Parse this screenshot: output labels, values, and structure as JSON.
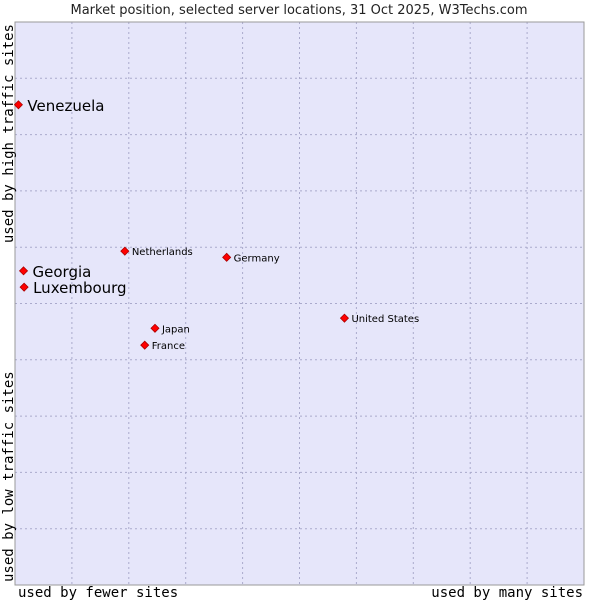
{
  "chart_data": {
    "type": "scatter",
    "title": "Market position, selected server locations, 31 Oct 2025, W3Techs.com",
    "xlabel_left": "used by fewer sites",
    "xlabel_right": "used by many sites",
    "ylabel_bottom": "used by low traffic sites",
    "ylabel_top": "used by high traffic sites",
    "xlim": [
      0,
      100
    ],
    "ylim": [
      0,
      100
    ],
    "grid": true,
    "colors": {
      "plot_background": "#e6e6fa",
      "grid": "#aaaacc",
      "marker": "#ff0000",
      "marker_stroke": "#aa0000"
    },
    "points": [
      {
        "label": "Venezuela",
        "x": 0.6,
        "y": 85.3,
        "size": "large"
      },
      {
        "label": "Georgia",
        "x": 1.5,
        "y": 55.8,
        "size": "large"
      },
      {
        "label": "Luxembourg",
        "x": 1.6,
        "y": 52.9,
        "size": "large"
      },
      {
        "label": "Netherlands",
        "x": 19.3,
        "y": 59.3,
        "size": "small"
      },
      {
        "label": "Germany",
        "x": 37.2,
        "y": 58.2,
        "size": "small"
      },
      {
        "label": "United States",
        "x": 57.9,
        "y": 47.4,
        "size": "small"
      },
      {
        "label": "Japan",
        "x": 24.6,
        "y": 45.6,
        "size": "small"
      },
      {
        "label": "France",
        "x": 22.8,
        "y": 42.6,
        "size": "small"
      }
    ]
  }
}
